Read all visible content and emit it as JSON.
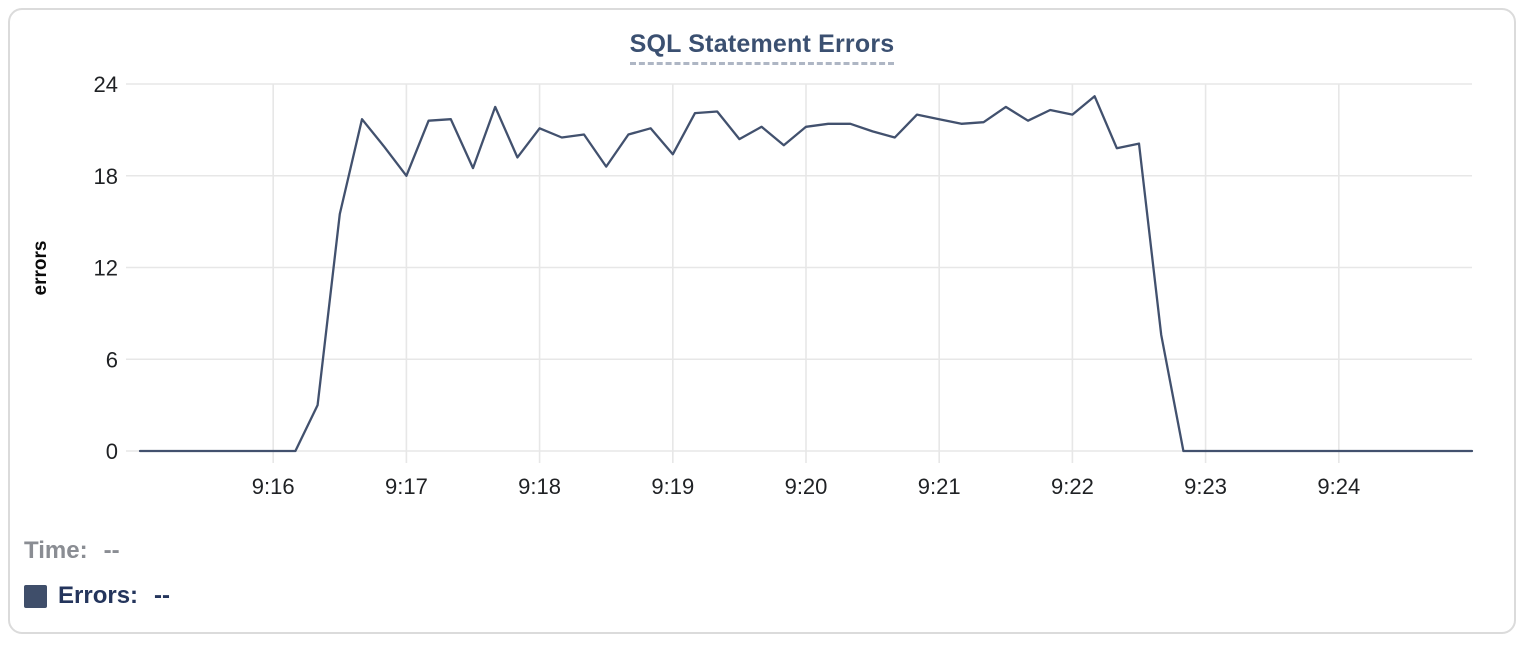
{
  "card": {
    "type": "chart-panel"
  },
  "legend": {
    "time_label": "Time:",
    "time_value": "--",
    "errors_label": "Errors:",
    "errors_value": "--",
    "swatch_color": "#3f4e6a",
    "time_color": "#8a8d93",
    "errors_color": "#24355c"
  },
  "colors": {
    "line": "#42516e",
    "grid": "#e7e7e7",
    "title": "#3b5071",
    "title_underline": "#aeb6c4",
    "tick_text": "#1f2124",
    "card_border": "#dbdbdb",
    "background": "#ffffff"
  },
  "chart_data": {
    "type": "line",
    "title": "SQL Statement Errors",
    "xlabel": "",
    "ylabel": "errors",
    "ylim": [
      0,
      24
    ],
    "y_ticks": [
      0,
      6,
      12,
      18,
      24
    ],
    "grid": true,
    "legend_position": "bottom-left",
    "x_axis_seconds_range": [
      0,
      600
    ],
    "x_ticks": [
      {
        "label": "9:16",
        "seconds": 60
      },
      {
        "label": "9:17",
        "seconds": 120
      },
      {
        "label": "9:18",
        "seconds": 180
      },
      {
        "label": "9:19",
        "seconds": 240
      },
      {
        "label": "9:20",
        "seconds": 300
      },
      {
        "label": "9:21",
        "seconds": 360
      },
      {
        "label": "9:22",
        "seconds": 420
      },
      {
        "label": "9:23",
        "seconds": 480
      },
      {
        "label": "9:24",
        "seconds": 540
      }
    ],
    "series": [
      {
        "name": "Errors",
        "color": "#42516e",
        "points": [
          {
            "t": "9:15:00",
            "v": 0
          },
          {
            "t": "9:15:10",
            "v": 0
          },
          {
            "t": "9:15:20",
            "v": 0
          },
          {
            "t": "9:15:30",
            "v": 0
          },
          {
            "t": "9:15:40",
            "v": 0
          },
          {
            "t": "9:15:50",
            "v": 0
          },
          {
            "t": "9:16:00",
            "v": 0
          },
          {
            "t": "9:16:10",
            "v": 0
          },
          {
            "t": "9:16:20",
            "v": 3
          },
          {
            "t": "9:16:30",
            "v": 15.5
          },
          {
            "t": "9:16:40",
            "v": 21.7
          },
          {
            "t": "9:16:50",
            "v": 19.9
          },
          {
            "t": "9:17:00",
            "v": 18
          },
          {
            "t": "9:17:10",
            "v": 21.6
          },
          {
            "t": "9:17:20",
            "v": 21.7
          },
          {
            "t": "9:17:30",
            "v": 18.5
          },
          {
            "t": "9:17:40",
            "v": 22.5
          },
          {
            "t": "9:17:50",
            "v": 19.2
          },
          {
            "t": "9:18:00",
            "v": 21.1
          },
          {
            "t": "9:18:10",
            "v": 20.5
          },
          {
            "t": "9:18:20",
            "v": 20.7
          },
          {
            "t": "9:18:30",
            "v": 18.6
          },
          {
            "t": "9:18:40",
            "v": 20.7
          },
          {
            "t": "9:18:50",
            "v": 21.1
          },
          {
            "t": "9:19:00",
            "v": 19.4
          },
          {
            "t": "9:19:10",
            "v": 22.1
          },
          {
            "t": "9:19:20",
            "v": 22.2
          },
          {
            "t": "9:19:30",
            "v": 20.4
          },
          {
            "t": "9:19:40",
            "v": 21.2
          },
          {
            "t": "9:19:50",
            "v": 20
          },
          {
            "t": "9:20:00",
            "v": 21.2
          },
          {
            "t": "9:20:10",
            "v": 21.4
          },
          {
            "t": "9:20:20",
            "v": 21.4
          },
          {
            "t": "9:20:30",
            "v": 20.9
          },
          {
            "t": "9:20:40",
            "v": 20.5
          },
          {
            "t": "9:20:50",
            "v": 22
          },
          {
            "t": "9:21:00",
            "v": 21.7
          },
          {
            "t": "9:21:10",
            "v": 21.4
          },
          {
            "t": "9:21:20",
            "v": 21.5
          },
          {
            "t": "9:21:30",
            "v": 22.5
          },
          {
            "t": "9:21:40",
            "v": 21.6
          },
          {
            "t": "9:21:50",
            "v": 22.3
          },
          {
            "t": "9:22:00",
            "v": 22
          },
          {
            "t": "9:22:10",
            "v": 23.2
          },
          {
            "t": "9:22:20",
            "v": 19.8
          },
          {
            "t": "9:22:30",
            "v": 20.1
          },
          {
            "t": "9:22:40",
            "v": 7.6
          },
          {
            "t": "9:22:50",
            "v": 0
          },
          {
            "t": "9:23:00",
            "v": 0
          },
          {
            "t": "9:23:10",
            "v": 0
          },
          {
            "t": "9:23:20",
            "v": 0
          },
          {
            "t": "9:23:30",
            "v": 0
          },
          {
            "t": "9:23:40",
            "v": 0
          },
          {
            "t": "9:23:50",
            "v": 0
          },
          {
            "t": "9:24:00",
            "v": 0
          },
          {
            "t": "9:24:10",
            "v": 0
          },
          {
            "t": "9:24:20",
            "v": 0
          },
          {
            "t": "9:24:30",
            "v": 0
          },
          {
            "t": "9:24:40",
            "v": 0
          },
          {
            "t": "9:24:50",
            "v": 0
          },
          {
            "t": "9:25:00",
            "v": 0
          }
        ]
      }
    ]
  }
}
